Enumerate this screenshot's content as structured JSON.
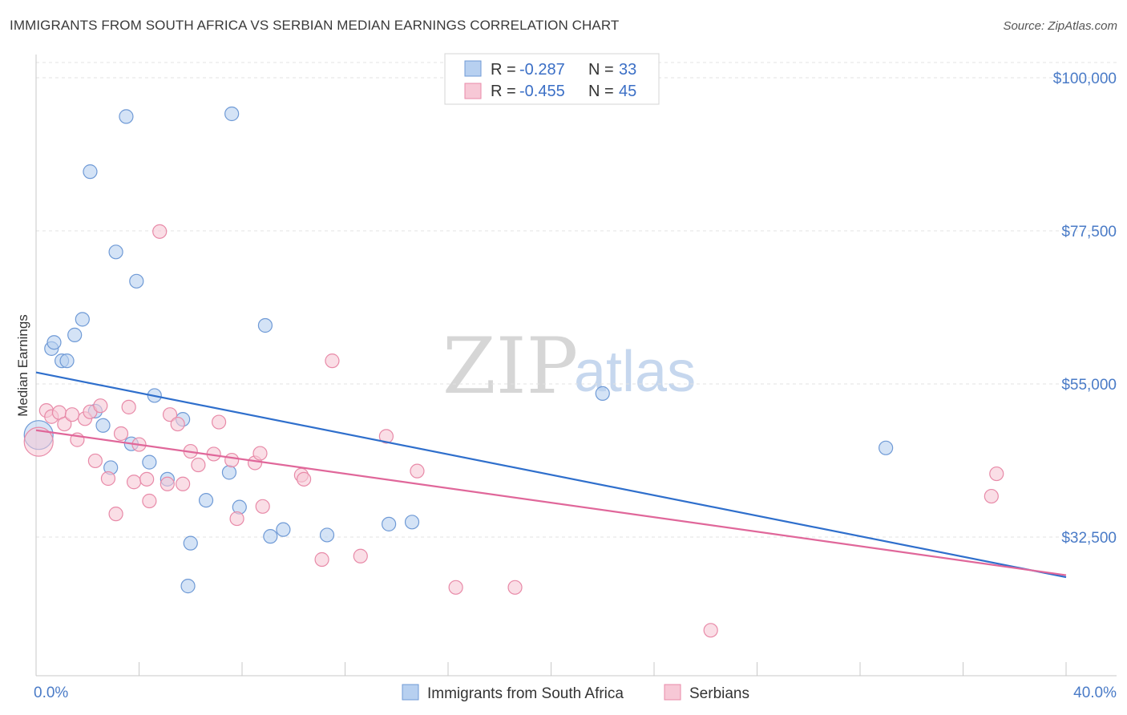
{
  "header": {
    "title": "IMMIGRANTS FROM SOUTH AFRICA VS SERBIAN MEDIAN EARNINGS CORRELATION CHART",
    "source": "Source: ZipAtlas.com"
  },
  "watermark": {
    "zip": "ZIP",
    "atlas": "atlas"
  },
  "legend": {
    "r_label": "R =",
    "n_label": "N =",
    "entries": [
      {
        "r": "-0.287",
        "n": "33"
      },
      {
        "r": "-0.455",
        "n": "45"
      }
    ]
  },
  "bottom_legend": [
    "Immigrants from South Africa",
    "Serbians"
  ],
  "chart_data": {
    "type": "scatter",
    "title": "IMMIGRANTS FROM SOUTH AFRICA VS SERBIAN MEDIAN EARNINGS CORRELATION CHART",
    "xlabel": "",
    "ylabel": "Median Earnings",
    "xlim": [
      0,
      40
    ],
    "ylim": [
      13000,
      103000
    ],
    "x_tick_labels": [
      "0.0%",
      "40.0%"
    ],
    "y_ticks": [
      32500,
      55000,
      77500,
      100000
    ],
    "y_tick_labels": [
      "$32,500",
      "$55,000",
      "$77,500",
      "$100,000"
    ],
    "grid": true,
    "colors": {
      "blue_fill": "#b7d0f0",
      "blue_stroke": "#6f9ad6",
      "blue_line": "#2f6fcc",
      "pink_fill": "#f7c8d6",
      "pink_stroke": "#e88aa8",
      "pink_line": "#e0679a"
    },
    "series": [
      {
        "name": "Immigrants from South Africa",
        "color": "#2f6fcc",
        "trend": {
          "x": [
            0,
            40
          ],
          "y": [
            56700,
            26600
          ]
        },
        "points": [
          {
            "x": 0.1,
            "y": 47500
          },
          {
            "x": 0.6,
            "y": 60200
          },
          {
            "x": 0.7,
            "y": 61100
          },
          {
            "x": 1.0,
            "y": 58400
          },
          {
            "x": 1.2,
            "y": 58400
          },
          {
            "x": 1.5,
            "y": 62200
          },
          {
            "x": 1.8,
            "y": 64500
          },
          {
            "x": 2.1,
            "y": 86200
          },
          {
            "x": 2.3,
            "y": 51000
          },
          {
            "x": 2.6,
            "y": 48900
          },
          {
            "x": 2.9,
            "y": 42700
          },
          {
            "x": 3.1,
            "y": 74400
          },
          {
            "x": 3.5,
            "y": 94300
          },
          {
            "x": 3.9,
            "y": 70100
          },
          {
            "x": 3.7,
            "y": 46200
          },
          {
            "x": 4.4,
            "y": 43500
          },
          {
            "x": 4.6,
            "y": 53300
          },
          {
            "x": 5.1,
            "y": 41000
          },
          {
            "x": 5.7,
            "y": 49800
          },
          {
            "x": 5.9,
            "y": 25300
          },
          {
            "x": 6.0,
            "y": 31600
          },
          {
            "x": 6.6,
            "y": 37900
          },
          {
            "x": 7.5,
            "y": 42000
          },
          {
            "x": 7.6,
            "y": 94700
          },
          {
            "x": 7.9,
            "y": 36900
          },
          {
            "x": 8.9,
            "y": 63600
          },
          {
            "x": 9.1,
            "y": 32600
          },
          {
            "x": 9.6,
            "y": 33600
          },
          {
            "x": 11.3,
            "y": 32800
          },
          {
            "x": 13.7,
            "y": 34400
          },
          {
            "x": 14.6,
            "y": 34700
          },
          {
            "x": 22.0,
            "y": 53600
          },
          {
            "x": 33.0,
            "y": 45600
          }
        ]
      },
      {
        "name": "Serbians",
        "color": "#e0679a",
        "trend": {
          "x": [
            0,
            40
          ],
          "y": [
            48200,
            26900
          ]
        },
        "points": [
          {
            "x": 0.1,
            "y": 46500
          },
          {
            "x": 0.4,
            "y": 51100
          },
          {
            "x": 0.6,
            "y": 50200
          },
          {
            "x": 0.9,
            "y": 50800
          },
          {
            "x": 1.1,
            "y": 49100
          },
          {
            "x": 1.4,
            "y": 50500
          },
          {
            "x": 1.6,
            "y": 46800
          },
          {
            "x": 1.9,
            "y": 49900
          },
          {
            "x": 2.1,
            "y": 50900
          },
          {
            "x": 2.3,
            "y": 43700
          },
          {
            "x": 2.5,
            "y": 51800
          },
          {
            "x": 2.8,
            "y": 41100
          },
          {
            "x": 3.1,
            "y": 35900
          },
          {
            "x": 3.3,
            "y": 47700
          },
          {
            "x": 3.6,
            "y": 51600
          },
          {
            "x": 3.8,
            "y": 40600
          },
          {
            "x": 4.0,
            "y": 46100
          },
          {
            "x": 4.3,
            "y": 41000
          },
          {
            "x": 4.4,
            "y": 37800
          },
          {
            "x": 4.8,
            "y": 77400
          },
          {
            "x": 5.1,
            "y": 40300
          },
          {
            "x": 5.2,
            "y": 50500
          },
          {
            "x": 5.5,
            "y": 49100
          },
          {
            "x": 5.7,
            "y": 40300
          },
          {
            "x": 6.0,
            "y": 45100
          },
          {
            "x": 6.3,
            "y": 43100
          },
          {
            "x": 6.9,
            "y": 44700
          },
          {
            "x": 7.1,
            "y": 49400
          },
          {
            "x": 7.6,
            "y": 43800
          },
          {
            "x": 7.8,
            "y": 35200
          },
          {
            "x": 8.5,
            "y": 43400
          },
          {
            "x": 8.7,
            "y": 44800
          },
          {
            "x": 8.8,
            "y": 37000
          },
          {
            "x": 10.3,
            "y": 41600
          },
          {
            "x": 10.4,
            "y": 41000
          },
          {
            "x": 11.1,
            "y": 29200
          },
          {
            "x": 11.5,
            "y": 58400
          },
          {
            "x": 12.6,
            "y": 29700
          },
          {
            "x": 13.6,
            "y": 47300
          },
          {
            "x": 14.8,
            "y": 42200
          },
          {
            "x": 16.3,
            "y": 25100
          },
          {
            "x": 18.6,
            "y": 25100
          },
          {
            "x": 26.2,
            "y": 18800
          },
          {
            "x": 37.1,
            "y": 38500
          },
          {
            "x": 37.3,
            "y": 41800
          }
        ]
      }
    ]
  }
}
